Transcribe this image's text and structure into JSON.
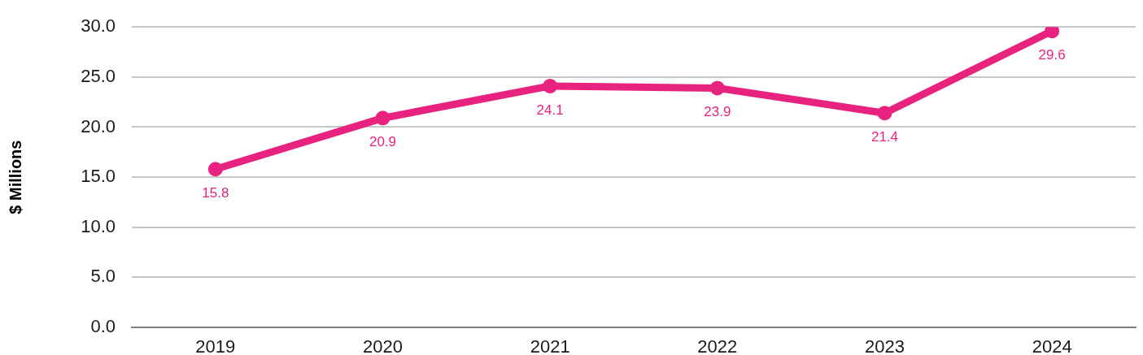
{
  "chart_data": {
    "type": "line",
    "ylabel": "$ Millions",
    "categories": [
      "2019",
      "2020",
      "2021",
      "2022",
      "2023",
      "2024"
    ],
    "series": [
      {
        "color": "#e8237f",
        "values": [
          15.8,
          20.9,
          24.1,
          23.9,
          21.4,
          29.6
        ]
      }
    ],
    "ylim": [
      0,
      30
    ],
    "yticks": [
      {
        "value": 0,
        "label": "0.0"
      },
      {
        "value": 5,
        "label": "5.0"
      },
      {
        "value": 10,
        "label": "10.0"
      },
      {
        "value": 15,
        "label": "15.0"
      },
      {
        "value": 20,
        "label": "20.0"
      },
      {
        "value": 25,
        "label": "25.0"
      },
      {
        "value": 30,
        "label": "30.0"
      }
    ],
    "grid": "y",
    "legend": false,
    "marker": "circle",
    "line_style": "solid",
    "data_labels": true
  }
}
